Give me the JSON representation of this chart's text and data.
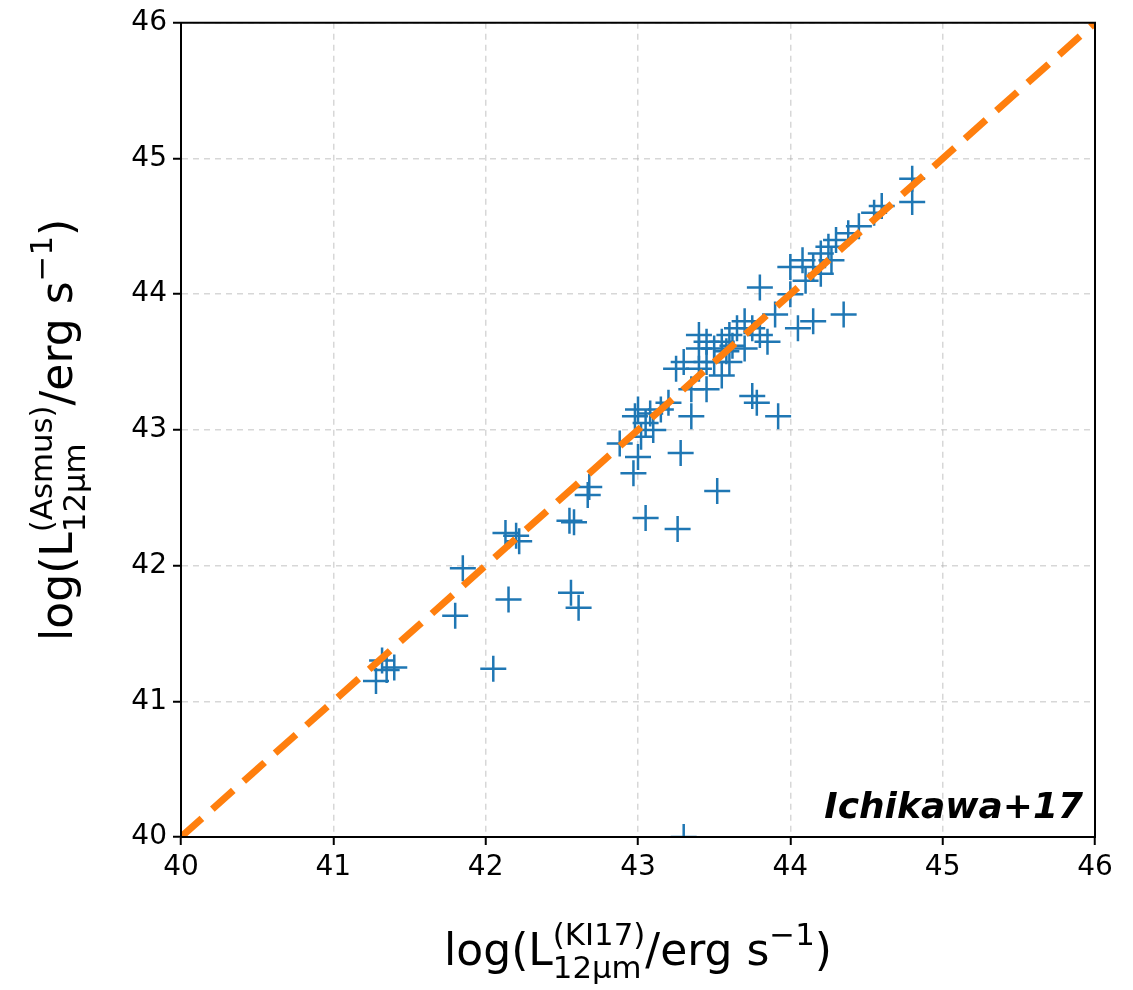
{
  "chart_data": {
    "type": "scatter",
    "xlabel": "log(L$_{12μm}$$^{(KI17)}$/erg s$^{−1}$)",
    "ylabel": "log(L$_{12μm}$$^{(Asmus)}$/erg s$^{−1}$)",
    "annotations": [
      "Ichikawa+17"
    ],
    "xlim": [
      40,
      46
    ],
    "ylim": [
      40,
      46
    ],
    "xticks": [
      40,
      41,
      42,
      43,
      44,
      45,
      46
    ],
    "yticks": [
      40,
      41,
      42,
      43,
      44,
      45,
      46
    ],
    "grid": true,
    "marker": "cross",
    "series": [
      {
        "type": "scatter",
        "color": "#1f77b4",
        "x": [
          41.28,
          41.35,
          41.4,
          41.32,
          41.8,
          41.85,
          42.05,
          42.15,
          42.13,
          42.22,
          42.2,
          42.55,
          42.58,
          42.56,
          42.61,
          42.67,
          42.68,
          42.88,
          42.97,
          43.0,
          43.05,
          43.26,
          43.52,
          43.28,
          43.35,
          43.25,
          43.3,
          42.98,
          43.05,
          43.02,
          43.1,
          43.15,
          43.2,
          43.0,
          43.08,
          43.4,
          43.45,
          43.5,
          43.35,
          43.45,
          43.55,
          43.5,
          43.55,
          43.6,
          43.65,
          43.7,
          43.58,
          43.62,
          43.4,
          43.45,
          43.75,
          43.78,
          43.92,
          43.4,
          43.6,
          43.8,
          43.75,
          43.8,
          43.9,
          44.0,
          44.1,
          44.08,
          44.15,
          44.2,
          44.25,
          44.3,
          44.05,
          44.15,
          44.35,
          44.0,
          44.38,
          44.45,
          44.55,
          44.6,
          44.8,
          44.8,
          44.2,
          44.27,
          43.3,
          43.85,
          43.7
        ],
        "values": [
          41.15,
          41.23,
          41.25,
          41.3,
          41.63,
          41.98,
          41.24,
          41.75,
          42.24,
          42.18,
          42.22,
          42.33,
          42.32,
          41.8,
          41.69,
          42.52,
          42.58,
          42.9,
          42.68,
          42.8,
          42.35,
          42.27,
          42.55,
          42.83,
          43.1,
          43.45,
          43.5,
          43.1,
          43.05,
          42.95,
          43.0,
          43.15,
          43.2,
          43.15,
          43.12,
          43.45,
          43.5,
          43.5,
          43.3,
          43.3,
          43.4,
          43.6,
          43.65,
          43.7,
          43.75,
          43.8,
          43.58,
          43.62,
          43.7,
          43.65,
          43.25,
          43.2,
          43.1,
          43.6,
          43.5,
          44.05,
          43.75,
          43.7,
          43.85,
          44.2,
          44.1,
          44.25,
          44.2,
          44.3,
          44.35,
          44.4,
          43.75,
          43.8,
          43.85,
          44.0,
          44.45,
          44.5,
          44.6,
          44.65,
          44.85,
          44.68,
          44.15,
          44.25,
          40.0,
          43.65,
          43.6
        ]
      },
      {
        "type": "line",
        "color": "#ff7f0e",
        "line_style": "dashed",
        "marker": "none",
        "x": [
          40,
          46
        ],
        "values": [
          40,
          46
        ]
      }
    ]
  }
}
